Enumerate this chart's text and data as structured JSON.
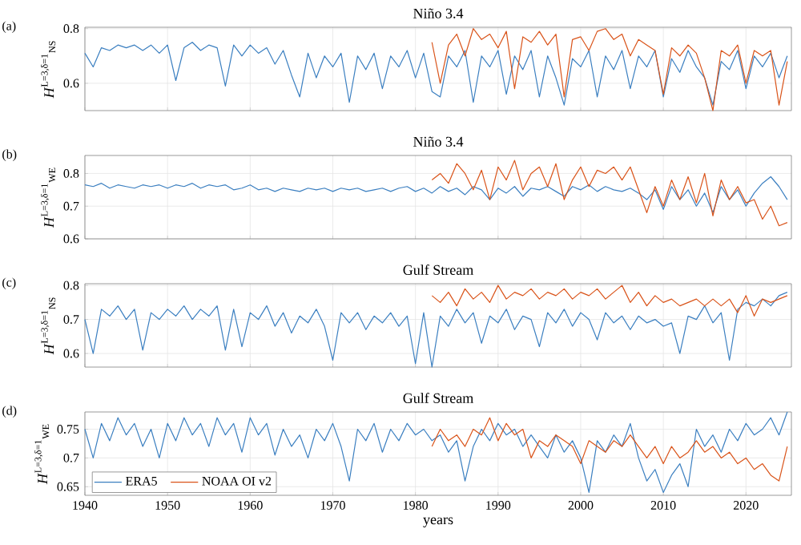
{
  "chart_data": [
    {
      "type": "line",
      "title": "Niño 3.4",
      "ylabel": "*H*$^{L=3,δ=1}$$_{NS}$",
      "annotations": [
        "(a)"
      ],
      "xlim": [
        1940,
        2025.5
      ],
      "ylim": [
        0.5,
        0.805
      ],
      "xticks": [
        1940,
        1950,
        1960,
        1970,
        1980,
        1990,
        2000,
        2010,
        2020
      ],
      "yticks": [
        0.6,
        0.8
      ],
      "tick_labels": "y",
      "grid": true,
      "legend": false,
      "x": [
        1940,
        1941,
        1942,
        1943,
        1944,
        1945,
        1946,
        1947,
        1948,
        1949,
        1950,
        1951,
        1952,
        1953,
        1954,
        1955,
        1956,
        1957,
        1958,
        1959,
        1960,
        1961,
        1962,
        1963,
        1964,
        1965,
        1966,
        1967,
        1968,
        1969,
        1970,
        1971,
        1972,
        1973,
        1974,
        1975,
        1976,
        1977,
        1978,
        1979,
        1980,
        1981,
        1982,
        1983,
        1984,
        1985,
        1986,
        1987,
        1988,
        1989,
        1990,
        1991,
        1992,
        1993,
        1994,
        1995,
        1996,
        1997,
        1998,
        1999,
        2000,
        2001,
        2002,
        2003,
        2004,
        2005,
        2006,
        2007,
        2008,
        2009,
        2010,
        2011,
        2012,
        2013,
        2014,
        2015,
        2016,
        2017,
        2018,
        2019,
        2020,
        2021,
        2022,
        2023,
        2024,
        2025
      ],
      "series": [
        {
          "color": "#3b7fc0",
          "values": [
            0.71,
            0.66,
            0.73,
            0.72,
            0.74,
            0.73,
            0.74,
            0.72,
            0.74,
            0.71,
            0.74,
            0.61,
            0.73,
            0.75,
            0.72,
            0.74,
            0.73,
            0.59,
            0.74,
            0.7,
            0.74,
            0.71,
            0.73,
            0.67,
            0.72,
            0.63,
            0.55,
            0.71,
            0.62,
            0.7,
            0.66,
            0.71,
            0.53,
            0.7,
            0.65,
            0.71,
            0.58,
            0.7,
            0.66,
            0.72,
            0.62,
            0.71,
            0.57,
            0.55,
            0.7,
            0.66,
            0.72,
            0.53,
            0.7,
            0.66,
            0.72,
            0.56,
            0.7,
            0.65,
            0.72,
            0.55,
            0.7,
            0.62,
            0.52,
            0.69,
            0.66,
            0.72,
            0.55,
            0.7,
            0.65,
            0.72,
            0.58,
            0.7,
            0.66,
            0.72,
            0.55,
            0.69,
            0.64,
            0.72,
            0.66,
            0.62,
            0.52,
            0.68,
            0.65,
            0.72,
            0.58,
            0.7,
            0.66,
            0.71,
            0.62,
            0.7
          ]
        },
        {
          "color": "#d95319",
          "x": [
            1982,
            1983,
            1984,
            1985,
            1986,
            1987,
            1988,
            1989,
            1990,
            1991,
            1992,
            1993,
            1994,
            1995,
            1996,
            1997,
            1998,
            1999,
            2000,
            2001,
            2002,
            2003,
            2004,
            2005,
            2006,
            2007,
            2008,
            2009,
            2010,
            2011,
            2012,
            2013,
            2014,
            2015,
            2016,
            2017,
            2018,
            2019,
            2020,
            2021,
            2022,
            2023,
            2024,
            2025
          ],
          "values": [
            0.75,
            0.6,
            0.74,
            0.78,
            0.7,
            0.8,
            0.76,
            0.78,
            0.73,
            0.79,
            0.58,
            0.77,
            0.75,
            0.79,
            0.74,
            0.78,
            0.55,
            0.76,
            0.77,
            0.72,
            0.79,
            0.8,
            0.76,
            0.78,
            0.7,
            0.76,
            0.74,
            0.72,
            0.56,
            0.73,
            0.7,
            0.74,
            0.71,
            0.62,
            0.5,
            0.72,
            0.7,
            0.74,
            0.6,
            0.72,
            0.7,
            0.72,
            0.52,
            0.68
          ]
        }
      ]
    },
    {
      "type": "line",
      "title": "Niño 3.4",
      "ylabel": "*H*$^{L=3,δ=1}$$_{WE}$",
      "annotations": [
        "(b)"
      ],
      "xlim": [
        1940,
        2025.5
      ],
      "ylim": [
        0.6,
        0.855
      ],
      "xticks": [
        1940,
        1950,
        1960,
        1970,
        1980,
        1990,
        2000,
        2010,
        2020
      ],
      "yticks": [
        0.6,
        0.7,
        0.8
      ],
      "tick_labels": "y",
      "grid": true,
      "legend": false,
      "x": [
        1940,
        1941,
        1942,
        1943,
        1944,
        1945,
        1946,
        1947,
        1948,
        1949,
        1950,
        1951,
        1952,
        1953,
        1954,
        1955,
        1956,
        1957,
        1958,
        1959,
        1960,
        1961,
        1962,
        1963,
        1964,
        1965,
        1966,
        1967,
        1968,
        1969,
        1970,
        1971,
        1972,
        1973,
        1974,
        1975,
        1976,
        1977,
        1978,
        1979,
        1980,
        1981,
        1982,
        1983,
        1984,
        1985,
        1986,
        1987,
        1988,
        1989,
        1990,
        1991,
        1992,
        1993,
        1994,
        1995,
        1996,
        1997,
        1998,
        1999,
        2000,
        2001,
        2002,
        2003,
        2004,
        2005,
        2006,
        2007,
        2008,
        2009,
        2010,
        2011,
        2012,
        2013,
        2014,
        2015,
        2016,
        2017,
        2018,
        2019,
        2020,
        2021,
        2022,
        2023,
        2024,
        2025
      ],
      "series": [
        {
          "color": "#3b7fc0",
          "values": [
            0.765,
            0.76,
            0.77,
            0.755,
            0.765,
            0.76,
            0.755,
            0.765,
            0.76,
            0.765,
            0.755,
            0.765,
            0.76,
            0.77,
            0.755,
            0.765,
            0.76,
            0.765,
            0.75,
            0.755,
            0.765,
            0.75,
            0.755,
            0.745,
            0.755,
            0.75,
            0.745,
            0.755,
            0.75,
            0.755,
            0.745,
            0.755,
            0.75,
            0.755,
            0.745,
            0.75,
            0.755,
            0.745,
            0.755,
            0.76,
            0.745,
            0.755,
            0.74,
            0.76,
            0.745,
            0.755,
            0.735,
            0.76,
            0.75,
            0.72,
            0.755,
            0.74,
            0.76,
            0.73,
            0.755,
            0.75,
            0.76,
            0.745,
            0.73,
            0.76,
            0.75,
            0.765,
            0.745,
            0.76,
            0.75,
            0.745,
            0.755,
            0.74,
            0.72,
            0.75,
            0.69,
            0.76,
            0.72,
            0.75,
            0.7,
            0.74,
            0.68,
            0.76,
            0.72,
            0.75,
            0.7,
            0.74,
            0.77,
            0.79,
            0.76,
            0.72
          ]
        },
        {
          "color": "#d95319",
          "x": [
            1982,
            1983,
            1984,
            1985,
            1986,
            1987,
            1988,
            1989,
            1990,
            1991,
            1992,
            1993,
            1994,
            1995,
            1996,
            1997,
            1998,
            1999,
            2000,
            2001,
            2002,
            2003,
            2004,
            2005,
            2006,
            2007,
            2008,
            2009,
            2010,
            2011,
            2012,
            2013,
            2014,
            2015,
            2016,
            2017,
            2018,
            2019,
            2020,
            2021,
            2022,
            2023,
            2024,
            2025
          ],
          "values": [
            0.78,
            0.8,
            0.77,
            0.83,
            0.8,
            0.75,
            0.81,
            0.72,
            0.82,
            0.78,
            0.84,
            0.75,
            0.8,
            0.82,
            0.76,
            0.83,
            0.72,
            0.78,
            0.82,
            0.76,
            0.81,
            0.8,
            0.82,
            0.78,
            0.82,
            0.75,
            0.68,
            0.76,
            0.7,
            0.78,
            0.72,
            0.79,
            0.71,
            0.8,
            0.67,
            0.78,
            0.72,
            0.76,
            0.71,
            0.72,
            0.66,
            0.7,
            0.64,
            0.65
          ]
        }
      ]
    },
    {
      "type": "line",
      "title": "Gulf Stream",
      "ylabel": "*H*$^{L=3,δ=1}$$_{NS}$",
      "annotations": [
        "(c)"
      ],
      "xlim": [
        1940,
        2025.5
      ],
      "ylim": [
        0.56,
        0.805
      ],
      "xticks": [
        1940,
        1950,
        1960,
        1970,
        1980,
        1990,
        2000,
        2010,
        2020
      ],
      "yticks": [
        0.6,
        0.7,
        0.8
      ],
      "tick_labels": "y",
      "grid": true,
      "legend": false,
      "x": [
        1940,
        1941,
        1942,
        1943,
        1944,
        1945,
        1946,
        1947,
        1948,
        1949,
        1950,
        1951,
        1952,
        1953,
        1954,
        1955,
        1956,
        1957,
        1958,
        1959,
        1960,
        1961,
        1962,
        1963,
        1964,
        1965,
        1966,
        1967,
        1968,
        1969,
        1970,
        1971,
        1972,
        1973,
        1974,
        1975,
        1976,
        1977,
        1978,
        1979,
        1980,
        1981,
        1982,
        1983,
        1984,
        1985,
        1986,
        1987,
        1988,
        1989,
        1990,
        1991,
        1992,
        1993,
        1994,
        1995,
        1996,
        1997,
        1998,
        1999,
        2000,
        2001,
        2002,
        2003,
        2004,
        2005,
        2006,
        2007,
        2008,
        2009,
        2010,
        2011,
        2012,
        2013,
        2014,
        2015,
        2016,
        2017,
        2018,
        2019,
        2020,
        2021,
        2022,
        2023,
        2024,
        2025
      ],
      "series": [
        {
          "color": "#3b7fc0",
          "values": [
            0.7,
            0.6,
            0.73,
            0.71,
            0.74,
            0.7,
            0.73,
            0.61,
            0.72,
            0.7,
            0.73,
            0.71,
            0.74,
            0.7,
            0.73,
            0.71,
            0.74,
            0.61,
            0.73,
            0.62,
            0.72,
            0.7,
            0.74,
            0.68,
            0.72,
            0.66,
            0.71,
            0.69,
            0.73,
            0.68,
            0.58,
            0.72,
            0.69,
            0.72,
            0.67,
            0.71,
            0.69,
            0.72,
            0.68,
            0.71,
            0.57,
            0.72,
            0.56,
            0.71,
            0.68,
            0.73,
            0.69,
            0.72,
            0.63,
            0.71,
            0.69,
            0.73,
            0.67,
            0.71,
            0.7,
            0.62,
            0.72,
            0.69,
            0.73,
            0.68,
            0.72,
            0.7,
            0.64,
            0.72,
            0.69,
            0.71,
            0.67,
            0.71,
            0.69,
            0.7,
            0.68,
            0.69,
            0.6,
            0.71,
            0.7,
            0.74,
            0.69,
            0.72,
            0.58,
            0.73,
            0.75,
            0.74,
            0.76,
            0.74,
            0.77,
            0.78
          ]
        },
        {
          "color": "#d95319",
          "x": [
            1982,
            1983,
            1984,
            1985,
            1986,
            1987,
            1988,
            1989,
            1990,
            1991,
            1992,
            1993,
            1994,
            1995,
            1996,
            1997,
            1998,
            1999,
            2000,
            2001,
            2002,
            2003,
            2004,
            2005,
            2006,
            2007,
            2008,
            2009,
            2010,
            2011,
            2012,
            2013,
            2014,
            2015,
            2016,
            2017,
            2018,
            2019,
            2020,
            2021,
            2022,
            2023,
            2024,
            2025
          ],
          "values": [
            0.77,
            0.75,
            0.78,
            0.74,
            0.79,
            0.76,
            0.78,
            0.75,
            0.8,
            0.76,
            0.78,
            0.77,
            0.79,
            0.76,
            0.78,
            0.77,
            0.79,
            0.76,
            0.78,
            0.77,
            0.79,
            0.76,
            0.78,
            0.8,
            0.75,
            0.78,
            0.74,
            0.77,
            0.75,
            0.76,
            0.74,
            0.75,
            0.76,
            0.74,
            0.76,
            0.74,
            0.76,
            0.72,
            0.77,
            0.71,
            0.76,
            0.75,
            0.76,
            0.77
          ]
        }
      ]
    },
    {
      "type": "line",
      "title": "Gulf Stream",
      "xlabel": "years",
      "ylabel": "*H*$^{L=3,δ=1}$$_{WE}$",
      "annotations": [
        "(d)"
      ],
      "xlim": [
        1940,
        2025.5
      ],
      "ylim": [
        0.635,
        0.78
      ],
      "xticks": [
        1940,
        1950,
        1960,
        1970,
        1980,
        1990,
        2000,
        2010,
        2020
      ],
      "yticks": [
        0.65,
        0.7,
        0.75
      ],
      "grid": true,
      "legend": "bottom left",
      "x": [
        1940,
        1941,
        1942,
        1943,
        1944,
        1945,
        1946,
        1947,
        1948,
        1949,
        1950,
        1951,
        1952,
        1953,
        1954,
        1955,
        1956,
        1957,
        1958,
        1959,
        1960,
        1961,
        1962,
        1963,
        1964,
        1965,
        1966,
        1967,
        1968,
        1969,
        1970,
        1971,
        1972,
        1973,
        1974,
        1975,
        1976,
        1977,
        1978,
        1979,
        1980,
        1981,
        1982,
        1983,
        1984,
        1985,
        1986,
        1987,
        1988,
        1989,
        1990,
        1991,
        1992,
        1993,
        1994,
        1995,
        1996,
        1997,
        1998,
        1999,
        2000,
        2001,
        2002,
        2003,
        2004,
        2005,
        2006,
        2007,
        2008,
        2009,
        2010,
        2011,
        2012,
        2013,
        2014,
        2015,
        2016,
        2017,
        2018,
        2019,
        2020,
        2021,
        2022,
        2023,
        2024,
        2025
      ],
      "series": [
        {
          "name": "ERA5",
          "color": "#3b7fc0",
          "values": [
            0.75,
            0.7,
            0.76,
            0.73,
            0.77,
            0.74,
            0.76,
            0.72,
            0.75,
            0.7,
            0.76,
            0.73,
            0.77,
            0.74,
            0.76,
            0.72,
            0.77,
            0.74,
            0.76,
            0.71,
            0.77,
            0.74,
            0.76,
            0.705,
            0.75,
            0.72,
            0.74,
            0.7,
            0.75,
            0.73,
            0.76,
            0.72,
            0.66,
            0.75,
            0.73,
            0.76,
            0.71,
            0.75,
            0.73,
            0.76,
            0.74,
            0.75,
            0.73,
            0.74,
            0.71,
            0.73,
            0.66,
            0.72,
            0.75,
            0.73,
            0.76,
            0.74,
            0.75,
            0.72,
            0.74,
            0.72,
            0.7,
            0.74,
            0.71,
            0.73,
            0.7,
            0.64,
            0.73,
            0.71,
            0.74,
            0.72,
            0.76,
            0.7,
            0.66,
            0.68,
            0.64,
            0.67,
            0.69,
            0.65,
            0.75,
            0.72,
            0.74,
            0.71,
            0.75,
            0.73,
            0.76,
            0.74,
            0.75,
            0.77,
            0.74,
            0.78
          ]
        },
        {
          "name": "NOAA OI v2",
          "color": "#d95319",
          "x": [
            1982,
            1983,
            1984,
            1985,
            1986,
            1987,
            1988,
            1989,
            1990,
            1991,
            1992,
            1993,
            1994,
            1995,
            1996,
            1997,
            1998,
            1999,
            2000,
            2001,
            2002,
            2003,
            2004,
            2005,
            2006,
            2007,
            2008,
            2009,
            2010,
            2011,
            2012,
            2013,
            2014,
            2015,
            2016,
            2017,
            2018,
            2019,
            2020,
            2021,
            2022,
            2023,
            2024,
            2025
          ],
          "values": [
            0.72,
            0.75,
            0.73,
            0.74,
            0.72,
            0.75,
            0.74,
            0.77,
            0.73,
            0.76,
            0.74,
            0.75,
            0.7,
            0.73,
            0.72,
            0.74,
            0.73,
            0.72,
            0.69,
            0.73,
            0.72,
            0.71,
            0.73,
            0.72,
            0.74,
            0.72,
            0.7,
            0.72,
            0.69,
            0.72,
            0.7,
            0.71,
            0.73,
            0.71,
            0.72,
            0.7,
            0.71,
            0.69,
            0.7,
            0.68,
            0.69,
            0.67,
            0.66,
            0.72
          ]
        }
      ]
    }
  ]
}
